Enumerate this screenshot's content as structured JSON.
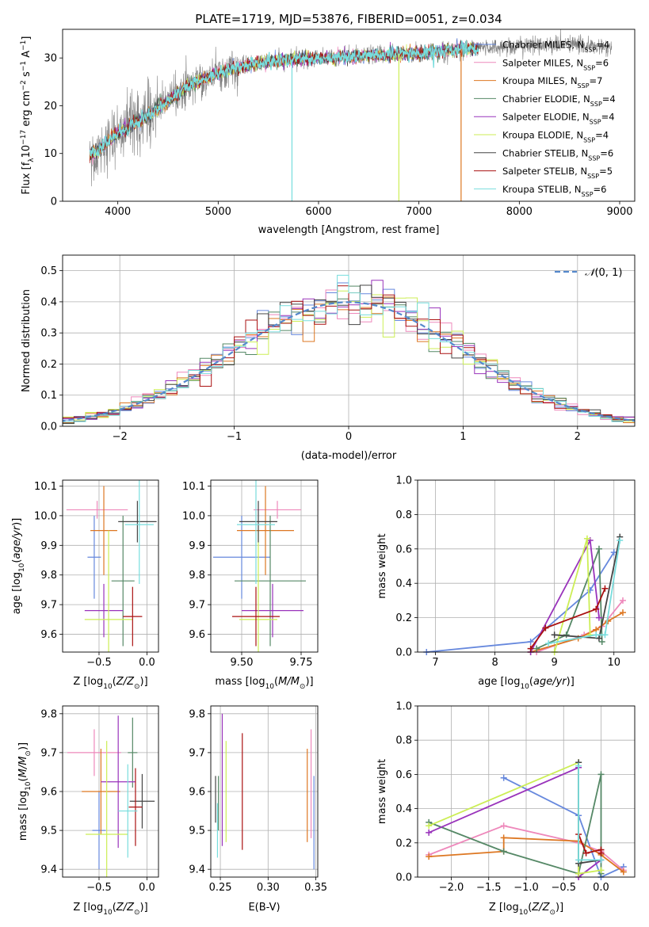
{
  "figure": {
    "title": "PLATE=1719, MJD=53876, FIBERID=0051, z=0.034"
  },
  "chart_data": [
    {
      "type": "line",
      "id": "spectrum",
      "xlabel": "wavelength [Angstrom, rest frame]",
      "ylabel": "Flux [f_λ 10^-17 erg cm^-2 s^-1 A^-1]",
      "xlim": [
        3450,
        9150
      ],
      "ylim": [
        0,
        36
      ],
      "xticks": [
        4000,
        5000,
        6000,
        7000,
        8000,
        9000
      ],
      "yticks": [
        0,
        10,
        20,
        30
      ],
      "grid": false,
      "legend_position": "top-right",
      "observed_color": "#808080",
      "x_range": [
        3720,
        8920
      ],
      "continuum_points": [
        [
          3720,
          9.5
        ],
        [
          3800,
          10.5
        ],
        [
          3950,
          13.5
        ],
        [
          4100,
          15.5
        ],
        [
          4300,
          18
        ],
        [
          4500,
          21
        ],
        [
          4700,
          24
        ],
        [
          4900,
          26
        ],
        [
          5100,
          27.5
        ],
        [
          5300,
          28.5
        ],
        [
          5600,
          29.5
        ],
        [
          6000,
          30
        ],
        [
          6500,
          30.5
        ],
        [
          7000,
          31
        ],
        [
          7500,
          32
        ],
        [
          8000,
          32.5
        ],
        [
          8500,
          33
        ],
        [
          8900,
          32
        ]
      ],
      "series": [
        {
          "name": "Chabrier MILES, N_SSP=4",
          "color": "#6688dd"
        },
        {
          "name": "Salpeter MILES, N_SSP=6",
          "color": "#ee88bb"
        },
        {
          "name": "Kroupa MILES, N_SSP=7",
          "color": "#dd7722"
        },
        {
          "name": "Chabrier ELODIE, N_SSP=4",
          "color": "#558866"
        },
        {
          "name": "Salpeter ELODIE, N_SSP=4",
          "color": "#9933bb"
        },
        {
          "name": "Kroupa ELODIE, N_SSP=4",
          "color": "#ccee55"
        },
        {
          "name": "Chabrier STELIB, N_SSP=6",
          "color": "#444444"
        },
        {
          "name": "Salpeter STELIB, N_SSP=5",
          "color": "#aa1111"
        },
        {
          "name": "Kroupa STELIB, N_SSP=6",
          "color": "#77dddd"
        }
      ]
    },
    {
      "type": "line",
      "id": "residuals",
      "xlabel": "(data-model)/error",
      "ylabel": "Normed distribution",
      "xlim": [
        -2.5,
        2.5
      ],
      "ylim": [
        0,
        0.55
      ],
      "xticks": [
        -2,
        -1,
        0,
        1,
        2
      ],
      "yticks": [
        0.0,
        0.1,
        0.2,
        0.3,
        0.4,
        0.5
      ],
      "grid": true,
      "legend_position": "top-right",
      "gaussian_name": "N(0,1)",
      "gaussian_color": "#5588cc",
      "bin_width": 0.1
    },
    {
      "type": "scatter",
      "id": "age_vs_Z",
      "xlabel": "Z [log10(Z/Z⊙)]",
      "ylabel": "age  [log10(age/yr)]",
      "xlim": [
        -0.88,
        0.12
      ],
      "ylim": [
        9.54,
        10.12
      ],
      "xticks": [
        -0.5,
        0.0
      ],
      "yticks": [
        9.6,
        9.7,
        9.8,
        9.9,
        10.0,
        10.1
      ],
      "grid": true,
      "points": [
        {
          "x": -0.55,
          "y": 9.86,
          "xerr": 0.07,
          "yerr": 0.14,
          "color": "#6688dd"
        },
        {
          "x": -0.52,
          "y": 10.02,
          "xerr": 0.32,
          "yerr": 0.03,
          "color": "#ee88bb"
        },
        {
          "x": -0.45,
          "y": 9.95,
          "xerr": 0.14,
          "yerr": 0.15,
          "color": "#dd7722"
        },
        {
          "x": -0.25,
          "y": 9.78,
          "xerr": 0.12,
          "yerr": 0.22,
          "color": "#558866"
        },
        {
          "x": -0.45,
          "y": 9.68,
          "xerr": 0.2,
          "yerr": 0.09,
          "color": "#9933bb"
        },
        {
          "x": -0.4,
          "y": 9.65,
          "xerr": 0.25,
          "yerr": 0.3,
          "color": "#ccee55"
        },
        {
          "x": -0.1,
          "y": 9.98,
          "xerr": 0.2,
          "yerr": 0.07,
          "color": "#444444"
        },
        {
          "x": -0.15,
          "y": 9.66,
          "xerr": 0.1,
          "yerr": 0.1,
          "color": "#aa1111"
        },
        {
          "x": -0.08,
          "y": 9.97,
          "xerr": 0.15,
          "yerr": 0.2,
          "color": "#77dddd"
        }
      ]
    },
    {
      "type": "scatter",
      "id": "age_vs_mass",
      "xlabel": "mass [log10(M/M⊙)]",
      "ylabel": "",
      "xlim": [
        9.37,
        9.82
      ],
      "ylim": [
        9.54,
        10.12
      ],
      "xticks": [
        9.5,
        9.75
      ],
      "yticks": [
        9.6,
        9.7,
        9.8,
        9.9,
        10.0,
        10.1
      ],
      "grid": true,
      "points": [
        {
          "x": 9.5,
          "y": 9.86,
          "xerr": 0.12,
          "yerr": 0.14,
          "color": "#6688dd"
        },
        {
          "x": 9.65,
          "y": 10.02,
          "xerr": 0.1,
          "yerr": 0.03,
          "color": "#ee88bb"
        },
        {
          "x": 9.6,
          "y": 9.95,
          "xerr": 0.12,
          "yerr": 0.15,
          "color": "#dd7722"
        },
        {
          "x": 9.62,
          "y": 9.78,
          "xerr": 0.15,
          "yerr": 0.22,
          "color": "#558866"
        },
        {
          "x": 9.63,
          "y": 9.68,
          "xerr": 0.13,
          "yerr": 0.09,
          "color": "#9933bb"
        },
        {
          "x": 9.57,
          "y": 9.65,
          "xerr": 0.08,
          "yerr": 0.3,
          "color": "#ccee55"
        },
        {
          "x": 9.57,
          "y": 9.98,
          "xerr": 0.08,
          "yerr": 0.07,
          "color": "#444444"
        },
        {
          "x": 9.56,
          "y": 9.66,
          "xerr": 0.1,
          "yerr": 0.1,
          "color": "#aa1111"
        },
        {
          "x": 9.56,
          "y": 9.97,
          "xerr": 0.08,
          "yerr": 0.2,
          "color": "#77dddd"
        }
      ]
    },
    {
      "type": "line",
      "id": "weight_vs_age",
      "xlabel": "age  [log10(age/yr)]",
      "ylabel": "mass weight",
      "xlim": [
        6.7,
        10.35
      ],
      "ylim": [
        0,
        1
      ],
      "xticks": [
        7,
        8,
        9,
        10
      ],
      "yticks": [
        0.0,
        0.2,
        0.4,
        0.6,
        0.8,
        1.0
      ],
      "grid": true,
      "series": [
        {
          "color": "#6688dd",
          "points": [
            [
              6.85,
              0.0
            ],
            [
              8.6,
              0.06
            ],
            [
              9.6,
              0.36
            ],
            [
              10.0,
              0.58
            ]
          ]
        },
        {
          "color": "#ee88bb",
          "points": [
            [
              8.7,
              0.0
            ],
            [
              9.5,
              0.1
            ],
            [
              9.8,
              0.15
            ],
            [
              10.15,
              0.3
            ]
          ]
        },
        {
          "color": "#dd7722",
          "points": [
            [
              8.6,
              0.0
            ],
            [
              9.4,
              0.08
            ],
            [
              9.7,
              0.13
            ],
            [
              9.9,
              0.18
            ],
            [
              10.15,
              0.23
            ]
          ]
        },
        {
          "color": "#558866",
          "points": [
            [
              8.7,
              0.02
            ],
            [
              9.2,
              0.1
            ],
            [
              9.75,
              0.6
            ],
            [
              9.8,
              0.06
            ]
          ]
        },
        {
          "color": "#9933bb",
          "points": [
            [
              8.6,
              0.0
            ],
            [
              9.6,
              0.65
            ],
            [
              9.75,
              0.2
            ]
          ]
        },
        {
          "color": "#ccee55",
          "points": [
            [
              9.0,
              0.0
            ],
            [
              9.55,
              0.66
            ],
            [
              9.6,
              0.1
            ]
          ]
        },
        {
          "color": "#444444",
          "points": [
            [
              9.0,
              0.1
            ],
            [
              9.75,
              0.08
            ],
            [
              10.1,
              0.67
            ]
          ]
        },
        {
          "color": "#aa1111",
          "points": [
            [
              8.6,
              0.02
            ],
            [
              8.85,
              0.14
            ],
            [
              9.7,
              0.25
            ],
            [
              9.85,
              0.37
            ]
          ]
        },
        {
          "color": "#77dddd",
          "points": [
            [
              8.9,
              0.05
            ],
            [
              9.7,
              0.1
            ],
            [
              9.85,
              0.1
            ],
            [
              10.1,
              0.65
            ]
          ]
        }
      ]
    },
    {
      "type": "scatter",
      "id": "mass_vs_Z",
      "xlabel": "Z [log10(Z/Z⊙)]",
      "ylabel": "mass [log10(M/M⊙)]",
      "xlim": [
        -0.88,
        0.12
      ],
      "ylim": [
        9.38,
        9.82
      ],
      "xticks": [
        -0.5,
        0.0
      ],
      "yticks": [
        9.4,
        9.5,
        9.6,
        9.7,
        9.8
      ],
      "grid": true,
      "points": [
        {
          "x": -0.5,
          "y": 9.5,
          "xerr": 0.07,
          "yerr": 0.1,
          "color": "#6688dd"
        },
        {
          "x": -0.55,
          "y": 9.7,
          "xerr": 0.28,
          "yerr": 0.06,
          "color": "#ee88bb"
        },
        {
          "x": -0.48,
          "y": 9.6,
          "xerr": 0.2,
          "yerr": 0.11,
          "color": "#dd7722"
        },
        {
          "x": -0.15,
          "y": 9.7,
          "xerr": 0.05,
          "yerr": 0.09,
          "color": "#558866"
        },
        {
          "x": -0.3,
          "y": 9.625,
          "xerr": 0.18,
          "yerr": 0.17,
          "color": "#9933bb"
        },
        {
          "x": -0.42,
          "y": 9.49,
          "xerr": 0.22,
          "yerr": 0.24,
          "color": "#ccee55"
        },
        {
          "x": -0.05,
          "y": 9.575,
          "xerr": 0.13,
          "yerr": 0.07,
          "color": "#444444"
        },
        {
          "x": -0.12,
          "y": 9.56,
          "xerr": 0.07,
          "yerr": 0.1,
          "color": "#aa1111"
        },
        {
          "x": -0.2,
          "y": 9.55,
          "xerr": 0.1,
          "yerr": 0.12,
          "color": "#77dddd"
        }
      ]
    },
    {
      "type": "scatter",
      "id": "mass_vs_ebv",
      "xlabel": "E(B-V)",
      "ylabel": "",
      "xlim": [
        0.24,
        0.352
      ],
      "ylim": [
        9.38,
        9.82
      ],
      "xticks": [
        0.25,
        0.3,
        0.35
      ],
      "yticks": [
        9.4,
        9.5,
        9.6,
        9.7,
        9.8
      ],
      "grid": true,
      "points": [
        {
          "x": 0.348,
          "y": 9.52,
          "yerr": 0.12,
          "color": "#6688dd"
        },
        {
          "x": 0.345,
          "y": 9.62,
          "yerr": 0.14,
          "color": "#ee88bb"
        },
        {
          "x": 0.341,
          "y": 9.59,
          "yerr": 0.12,
          "color": "#dd7722"
        },
        {
          "x": 0.248,
          "y": 9.57,
          "yerr": 0.07,
          "color": "#558866"
        },
        {
          "x": 0.252,
          "y": 9.63,
          "yerr": 0.17,
          "color": "#9933bb"
        },
        {
          "x": 0.256,
          "y": 9.6,
          "yerr": 0.13,
          "color": "#ccee55"
        },
        {
          "x": 0.245,
          "y": 9.58,
          "yerr": 0.06,
          "color": "#444444"
        },
        {
          "x": 0.273,
          "y": 9.6,
          "yerr": 0.15,
          "color": "#aa1111"
        },
        {
          "x": 0.247,
          "y": 9.5,
          "yerr": 0.07,
          "color": "#77dddd"
        }
      ]
    },
    {
      "type": "line",
      "id": "weight_vs_Z",
      "xlabel": "Z [log10(Z/Z⊙)]",
      "ylabel": "mass weight",
      "xlim": [
        -2.45,
        0.45
      ],
      "ylim": [
        0,
        1
      ],
      "xticks": [
        -2.0,
        -1.5,
        -1.0,
        -0.5,
        0.0
      ],
      "yticks": [
        0.0,
        0.2,
        0.4,
        0.6,
        0.8,
        1.0
      ],
      "grid": true,
      "series": [
        {
          "color": "#6688dd",
          "points": [
            [
              -1.3,
              0.58
            ],
            [
              -0.3,
              0.36
            ],
            [
              0.0,
              0.0
            ],
            [
              0.3,
              0.06
            ]
          ]
        },
        {
          "color": "#ee88bb",
          "points": [
            [
              -2.3,
              0.13
            ],
            [
              -1.3,
              0.3
            ],
            [
              -0.3,
              0.2
            ],
            [
              0.0,
              0.15
            ],
            [
              0.3,
              0.04
            ]
          ]
        },
        {
          "color": "#dd7722",
          "points": [
            [
              -2.3,
              0.12
            ],
            [
              -1.3,
              0.15
            ],
            [
              -1.3,
              0.23
            ],
            [
              -0.3,
              0.21
            ],
            [
              0.0,
              0.13
            ],
            [
              0.3,
              0.03
            ]
          ]
        },
        {
          "color": "#558866",
          "points": [
            [
              -2.3,
              0.32
            ],
            [
              -1.3,
              0.15
            ],
            [
              -0.3,
              0.02
            ],
            [
              0.0,
              0.6
            ],
            [
              0.0,
              0.02
            ]
          ]
        },
        {
          "color": "#9933bb",
          "points": [
            [
              -2.3,
              0.26
            ],
            [
              -0.3,
              0.64
            ],
            [
              -0.3,
              0.0
            ],
            [
              0.0,
              0.1
            ]
          ]
        },
        {
          "color": "#ccee55",
          "points": [
            [
              -2.3,
              0.3
            ],
            [
              -0.3,
              0.67
            ],
            [
              -0.3,
              0.02
            ],
            [
              0.0,
              0.04
            ]
          ]
        },
        {
          "color": "#444444",
          "points": [
            [
              -0.3,
              0.67
            ],
            [
              -0.3,
              0.08
            ],
            [
              0.0,
              0.1
            ]
          ]
        },
        {
          "color": "#aa1111",
          "points": [
            [
              -0.3,
              0.25
            ],
            [
              -0.2,
              0.14
            ],
            [
              0.0,
              0.16
            ],
            [
              0.0,
              0.14
            ]
          ]
        },
        {
          "color": "#77dddd",
          "points": [
            [
              -0.3,
              0.65
            ],
            [
              -0.3,
              0.1
            ],
            [
              0.0,
              0.1
            ]
          ]
        }
      ]
    }
  ]
}
